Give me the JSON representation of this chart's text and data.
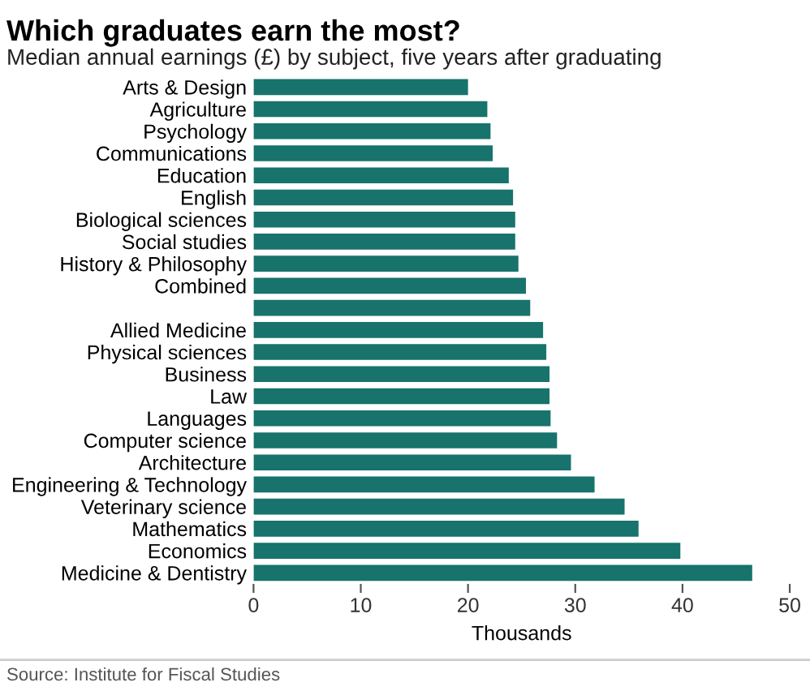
{
  "chart_data": {
    "type": "bar",
    "orientation": "horizontal",
    "title": "Which graduates earn the most?",
    "subtitle": "Median annual earnings (£) by subject, five years after graduating",
    "xlabel": "Thousands",
    "categories": [
      "Arts & Design",
      "Agriculture",
      "Psychology",
      "Communications",
      "Education",
      "English",
      "Biological sciences",
      "Social studies",
      "History & Philosophy",
      "Combined",
      null,
      "Allied Medicine",
      "Physical sciences",
      "Business",
      "Law",
      "Languages",
      "Computer science",
      "Architecture",
      "Engineering & Technology",
      "Veterinary science",
      "Mathematics",
      "Economics",
      "Medicine & Dentistry"
    ],
    "values": [
      20.0,
      21.8,
      22.1,
      22.3,
      23.8,
      24.2,
      24.4,
      24.4,
      24.7,
      25.4,
      25.8,
      27.0,
      27.3,
      27.6,
      27.6,
      27.7,
      28.3,
      29.6,
      31.8,
      34.6,
      35.9,
      39.8,
      46.5
    ],
    "color": "#17736b",
    "xlim": [
      0,
      50
    ],
    "xticks": [
      0,
      10,
      20,
      30,
      40,
      50
    ],
    "grid": false,
    "legend": false,
    "annotations": [
      "Source: Institute for Fiscal Studies"
    ]
  }
}
